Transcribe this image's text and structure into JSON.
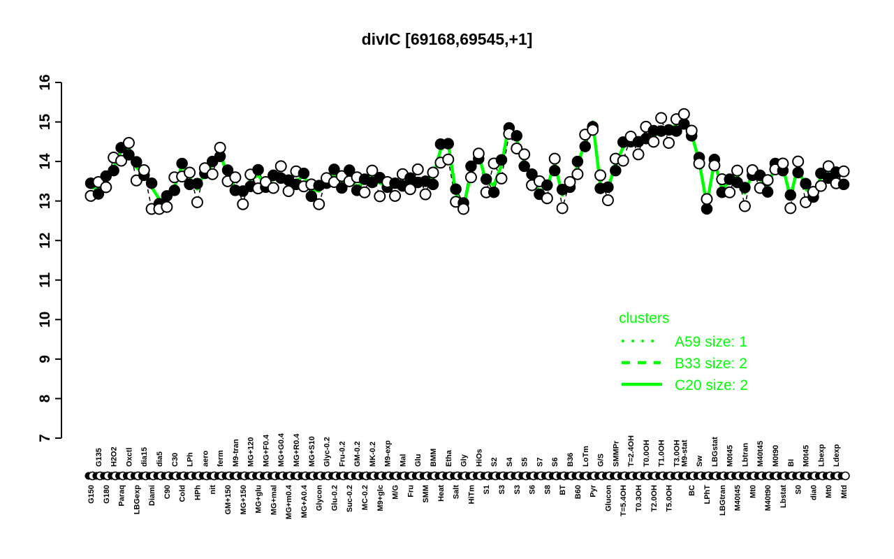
{
  "title": "divIC [69168,69545,+1]",
  "colors": {
    "cluster_green": "#00FF00",
    "axis_black": "#000000",
    "background": "#FFFFFF",
    "open_marker_fill": "#FFFFFF"
  },
  "y_axis": {
    "min": 7,
    "max": 16,
    "tick_labels": [
      "7",
      "8",
      "9",
      "10",
      "11",
      "12",
      "13",
      "14",
      "15",
      "16"
    ]
  },
  "legend": {
    "title": "clusters",
    "entries": [
      {
        "label": "A59 size: 1",
        "line_style": "dotted"
      },
      {
        "label": "B33 size: 2",
        "line_style": "dashed"
      },
      {
        "label": "C20 size: 2",
        "line_style": "solid"
      }
    ]
  },
  "chart_data": {
    "type": "line",
    "ylim": [
      7,
      16
    ],
    "y_ticks": [
      7,
      8,
      9,
      10,
      11,
      12,
      13,
      14,
      15,
      16
    ],
    "categories": [
      "G150",
      "G135",
      "G180",
      "H2O2",
      "Paraq",
      "Oxctl",
      "LBGexp",
      "dia15",
      "Diami",
      "dia5",
      "C90",
      "C30",
      "Cold",
      "LPh",
      "HPh",
      "aero",
      "nit",
      "ferm",
      "GM+150",
      "M9-tran",
      "MG+150",
      "MG+120",
      "MG+glu",
      "MG+F0.4",
      "MG+mal",
      "MG+G0.4",
      "MG+m0.4",
      "MG+R0.4",
      "MG+A0.4",
      "MG+S10",
      "Glycon",
      "Glyc-0.2",
      "Glu-0.2",
      "Fru-0.2",
      "Suc-0.2",
      "GM-0.2",
      "MC-0.2",
      "MK-0.2",
      "M9+glc",
      "M9-exp",
      "M/G",
      "Mal",
      "Fru",
      "Glu",
      "SMM",
      "BMM",
      "Heat",
      "Etha",
      "Salt",
      "Gly",
      "HiTm",
      "HiOs",
      "S1",
      "S2",
      "S3",
      "S4",
      "S3",
      "S5",
      "S6",
      "S7",
      "S8",
      "S6",
      "BT",
      "B36",
      "B60",
      "LoTm",
      "Pyr",
      "G/S",
      "Glucon",
      "SMMPr",
      "T=5.4OH",
      "T=2.4OH",
      "T0.3OH",
      "T0.0OH",
      "T2.0OH",
      "T1.0OH",
      "T5.0OH",
      "T3.0OH",
      "M9-stat",
      "BC",
      "Sw",
      "LPhT",
      "LBGstat",
      "LBGtran",
      "M0t45",
      "M40t45",
      "Lbtran",
      "Mt0",
      "M40t45",
      "M40t90",
      "M0t90",
      "Lbstat",
      "BI",
      "S0",
      "M0t45",
      "dia0",
      "Lbexp",
      "Mt0",
      "Ldexp",
      "Mtd"
    ],
    "label_row": [
      "b",
      "t",
      "b",
      "t",
      "b",
      "t",
      "b",
      "t",
      "b",
      "t",
      "b",
      "t",
      "b",
      "t",
      "b",
      "t",
      "b",
      "t",
      "b",
      "t",
      "b",
      "t",
      "b",
      "t",
      "b",
      "t",
      "b",
      "t",
      "b",
      "t",
      "b",
      "t",
      "b",
      "t",
      "b",
      "t",
      "b",
      "t",
      "b",
      "t",
      "b",
      "t",
      "b",
      "t",
      "b",
      "t",
      "b",
      "t",
      "b",
      "t",
      "b",
      "t",
      "b",
      "t",
      "b",
      "t",
      "b",
      "t",
      "b",
      "t",
      "b",
      "t",
      "b",
      "t",
      "b",
      "t",
      "b",
      "t",
      "b",
      "t",
      "b",
      "t",
      "b",
      "t",
      "b",
      "t",
      "b",
      "t",
      "t",
      "b",
      "t",
      "b",
      "t",
      "b",
      "t",
      "b",
      "t",
      "b",
      "t",
      "b",
      "t",
      "b",
      "t",
      "b",
      "t",
      "b",
      "t",
      "b",
      "t",
      "b"
    ],
    "series": [
      {
        "name": "C20 cluster mean",
        "color": "#00FF00",
        "style": "solid-thick",
        "values": [
          13.35,
          13.3,
          13.45,
          13.85,
          14.3,
          14.35,
          13.85,
          13.7,
          13.35,
          13.05,
          12.95,
          13.35,
          13.9,
          13.6,
          13.3,
          13.75,
          13.9,
          14.25,
          13.6,
          13.35,
          13.2,
          13.55,
          13.65,
          13.4,
          13.55,
          13.7,
          13.35,
          13.5,
          13.65,
          13.3,
          13.25,
          13.5,
          13.7,
          13.45,
          13.6,
          13.35,
          13.5,
          13.65,
          13.45,
          13.4,
          13.35,
          13.5,
          13.4,
          13.55,
          13.45,
          13.6,
          14.3,
          14.45,
          13.2,
          12.85,
          13.7,
          14.15,
          13.5,
          13.4,
          13.9,
          14.95,
          14.55,
          14.0,
          13.5,
          13.25,
          13.35,
          13.95,
          13.15,
          13.4,
          13.9,
          14.5,
          15.0,
          13.4,
          13.3,
          13.95,
          14.35,
          14.55,
          14.4,
          14.7,
          14.6,
          14.85,
          14.75,
          14.95,
          15.05,
          14.7,
          14.0,
          12.9,
          14.0,
          13.3,
          13.5,
          13.65,
          13.2,
          13.7,
          13.55,
          13.35,
          13.9,
          13.85,
          13.1,
          13.9,
          13.3,
          13.15,
          13.6,
          13.7,
          13.55,
          13.5
        ]
      },
      {
        "name": "gene profile (filled points)",
        "color": "#000000",
        "marker": "filled",
        "values": [
          13.45,
          13.18,
          13.63,
          13.77,
          14.35,
          14.17,
          13.99,
          13.65,
          13.45,
          12.93,
          13.13,
          13.27,
          13.95,
          13.42,
          13.44,
          13.7,
          14.0,
          14.13,
          13.78,
          13.27,
          13.25,
          13.37,
          13.79,
          13.35,
          13.65,
          13.58,
          13.53,
          13.42,
          13.7,
          13.12,
          13.39,
          13.45,
          13.8,
          13.33,
          13.78,
          13.27,
          13.55,
          13.47,
          13.59,
          13.35,
          13.45,
          13.38,
          13.58,
          13.47,
          13.5,
          13.42,
          14.44,
          14.45,
          13.3,
          12.95,
          13.88,
          14.07,
          13.55,
          13.22,
          14.04,
          14.85,
          14.65,
          13.88,
          13.68,
          13.17,
          13.4,
          13.77,
          13.29,
          13.35,
          14.0,
          14.38,
          14.88,
          13.32,
          13.35,
          13.77,
          14.49,
          14.5,
          14.5,
          14.58,
          14.78,
          14.77,
          14.8,
          14.77,
          14.95,
          14.65,
          14.1,
          12.8,
          14.05,
          13.22,
          13.55,
          13.47,
          13.34,
          13.65,
          13.65,
          13.23,
          13.95,
          13.77,
          13.15,
          13.72,
          13.44,
          13.1,
          13.7,
          13.58,
          13.73,
          13.42
        ]
      },
      {
        "name": "gene profile (open points)",
        "color": "#000000",
        "marker": "open",
        "values": [
          13.13,
          13.48,
          13.35,
          14.1,
          14.02,
          14.47,
          13.52,
          13.78,
          12.8,
          12.8,
          12.85,
          13.6,
          13.62,
          13.72,
          12.97,
          13.83,
          13.68,
          14.35,
          13.5,
          13.6,
          12.92,
          13.67,
          13.32,
          13.48,
          13.33,
          13.88,
          13.25,
          13.75,
          13.37,
          13.42,
          12.92,
          13.58,
          13.48,
          13.63,
          13.5,
          13.6,
          13.22,
          13.77,
          13.12,
          13.48,
          13.13,
          13.68,
          13.3,
          13.8,
          13.17,
          13.72,
          13.97,
          14.05,
          12.98,
          12.8,
          13.6,
          14.2,
          13.22,
          13.95,
          13.57,
          14.7,
          14.33,
          14.18,
          13.4,
          13.5,
          13.07,
          14.07,
          12.82,
          13.48,
          13.68,
          14.68,
          14.8,
          13.65,
          13.02,
          14.07,
          14.02,
          14.63,
          14.18,
          14.88,
          14.5,
          15.1,
          14.47,
          15.07,
          15.2,
          14.78,
          13.95,
          13.05,
          13.9,
          13.55,
          13.22,
          13.77,
          12.87,
          13.78,
          13.33,
          13.53,
          13.8,
          13.95,
          12.82,
          14.0,
          12.97,
          13.23,
          13.38,
          13.88,
          13.45,
          13.75
        ]
      }
    ]
  }
}
